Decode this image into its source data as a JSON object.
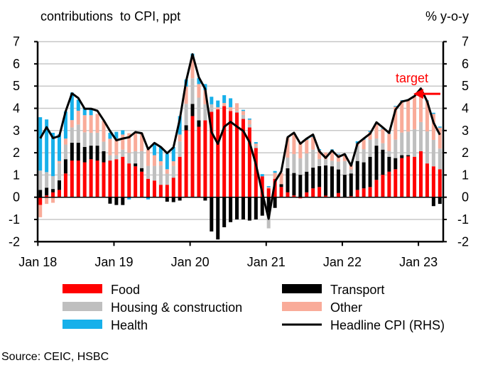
{
  "chart_data": {
    "type": "bar",
    "stacked": true,
    "left_title": "contributions  to CPI, ppt",
    "right_title": "% y-o-y",
    "source": "Source: CEIC, HSBC",
    "ylim": [
      -2,
      7
    ],
    "y2lim": [
      -2,
      7
    ],
    "grid": true,
    "legend_position": "bottom",
    "y_ticks": [
      "7",
      "6",
      "5",
      "4",
      "3",
      "2",
      "1",
      "0",
      "-1",
      "-2"
    ],
    "x_tick_labels": [
      "Jan 18",
      "Jan 19",
      "Jan 20",
      "Jan 21",
      "Jan 22",
      "Jan 23"
    ],
    "categories": [
      "Jan 18",
      "Feb 18",
      "Mar 18",
      "Apr 18",
      "May 18",
      "Jun 18",
      "Jul 18",
      "Aug 18",
      "Sep 18",
      "Oct 18",
      "Nov 18",
      "Dec 18",
      "Jan 19",
      "Feb 19",
      "Mar 19",
      "Apr 19",
      "May 19",
      "Jun 19",
      "Jul 19",
      "Aug 19",
      "Sep 19",
      "Oct 19",
      "Nov 19",
      "Dec 19",
      "Jan 20",
      "Feb 20",
      "Mar 20",
      "Apr 20",
      "May 20",
      "Jun 20",
      "Jul 20",
      "Aug 20",
      "Sep 20",
      "Oct 20",
      "Nov 20",
      "Dec 20",
      "Jan 21",
      "Feb 21",
      "Mar 21",
      "Apr 21",
      "May 21",
      "Jun 21",
      "Jul 21",
      "Aug 21",
      "Sep 21",
      "Oct 21",
      "Nov 21",
      "Dec 21",
      "Jan 22",
      "Feb 22",
      "Mar 22",
      "Apr 22",
      "May 22",
      "Jun 22",
      "Jul 22",
      "Aug 22",
      "Sep 22",
      "Oct 22",
      "Nov 22",
      "Dec 22",
      "Jan 23",
      "Feb 23",
      "Mar 23",
      "Apr 23"
    ],
    "series": [
      {
        "name": "Food",
        "color": "#ff0000",
        "values": [
          -0.35,
          0.08,
          0.22,
          0.33,
          1.07,
          1.65,
          1.65,
          1.57,
          1.71,
          1.65,
          1.57,
          1.65,
          1.71,
          1.82,
          1.52,
          1.39,
          1.15,
          0.83,
          0.75,
          0.56,
          0.56,
          0.88,
          1.82,
          3.01,
          3.65,
          3.17,
          3.46,
          3.84,
          3.95,
          4.1,
          3.88,
          3.81,
          3.52,
          3.14,
          2.21,
          0.94,
          0.4,
          0.83,
          0.46,
          0.22,
          0.08,
          -0.05,
          0.22,
          0.4,
          0.46,
          0.07,
          0.0,
          0.19,
          0.0,
          0.05,
          0.33,
          0.4,
          0.46,
          0.78,
          1.01,
          1.15,
          1.26,
          1.76,
          1.84,
          1.82,
          2.07,
          1.52,
          1.39,
          1.26
        ]
      },
      {
        "name": "Transport",
        "color": "#000000",
        "values": [
          0.33,
          0.35,
          0.15,
          0.43,
          0.64,
          0.8,
          0.8,
          0.69,
          0.61,
          0.67,
          0.5,
          -0.29,
          -0.35,
          -0.35,
          0,
          0.13,
          0.16,
          0,
          0,
          0,
          -0.2,
          -0.22,
          -0.15,
          0.23,
          0.55,
          0.29,
          -0.15,
          -1.54,
          -1.9,
          -1.35,
          -1.12,
          -1.0,
          -1.0,
          -1.05,
          -1.0,
          -0.83,
          -0.7,
          -0.48,
          0.13,
          1.08,
          1.01,
          1.01,
          0.93,
          0.93,
          0.94,
          1.36,
          1.39,
          1.06,
          1.01,
          1.02,
          1.3,
          1.17,
          1.36,
          1.54,
          1.13,
          0.67,
          0.5,
          0.13,
          0.05,
          0,
          0,
          0,
          -0.4,
          -0.3
        ]
      },
      {
        "name": "Housing & construction",
        "color": "#bfbfbf",
        "values": [
          0.87,
          0.7,
          0.58,
          0.77,
          0.66,
          0.69,
          0.82,
          0.66,
          0.58,
          0.58,
          0.43,
          0.24,
          0.18,
          0.32,
          0.48,
          0.55,
          0.77,
          0.58,
          0.66,
          0.87,
          0.5,
          0.53,
          0.69,
          0.96,
          1.15,
          1.02,
          0.72,
          0.34,
          0,
          0,
          0,
          0.07,
          0.18,
          0.14,
          0.1,
          0,
          -0.7,
          0,
          0,
          0.48,
          0.85,
          0.74,
          0.82,
          0.81,
          0.32,
          0.28,
          0.25,
          0.35,
          0.62,
          0.18,
          0.69,
          0.59,
          0.77,
          0.32,
          0.29,
          0.26,
          0.83,
          1.02,
          1.06,
          1.24,
          1.31,
          1.44,
          1.19,
          0.93
        ]
      },
      {
        "name": "Other",
        "color": "#f9ab99",
        "values": [
          -0.55,
          -0.3,
          -0.25,
          0.1,
          0.27,
          0.33,
          0.62,
          0.77,
          0.79,
          0.85,
          0.94,
          0.74,
          0.75,
          0.68,
          0.88,
          0.83,
          0.8,
          0.74,
          0.48,
          0.19,
          0.2,
          0.21,
          0.31,
          0.78,
          0.9,
          0.61,
          0.64,
          0,
          0.1,
          0.14,
          0.17,
          0.35,
          0.18,
          0.21,
          0.1,
          0,
          0.05,
          0.27,
          0.5,
          0.9,
          0.94,
          0.67,
          0.62,
          0.57,
          0.39,
          0.3,
          0.46,
          0.32,
          0.27,
          0.21,
          0.1,
          0.43,
          0.34,
          0.64,
          0.64,
          0.78,
          1.49,
          1.44,
          1.44,
          1.49,
          1.44,
          1.38,
          1.17,
          0.94
        ]
      },
      {
        "name": "Health",
        "color": "#17b0ea",
        "values": [
          2.4,
          2.37,
          1.95,
          1.2,
          1.22,
          1.24,
          0.5,
          0.33,
          0.28,
          0,
          0,
          0.27,
          0.3,
          0.19,
          -0.1,
          0,
          0,
          -0.1,
          0.48,
          0.64,
          0.7,
          0.64,
          0.83,
          0.32,
          0.21,
          0.27,
          0.27,
          0.34,
          0.3,
          0.35,
          0.4,
          0,
          0.05,
          0.05,
          0.07,
          0.1,
          0.05,
          0.08,
          0,
          0,
          0,
          0,
          0.03,
          0.03,
          0.05,
          0,
          0.05,
          0.03,
          0.03,
          0.03,
          0.1,
          0.04,
          0.05,
          0.05,
          0.03,
          0.03,
          0.03,
          0.02,
          0.02,
          0.02,
          0.02,
          0.02,
          0.05,
          0.05
        ]
      }
    ],
    "line": {
      "name": "Headline CPI (RHS)",
      "color": "#000000",
      "axis": "right",
      "values": [
        2.65,
        3.15,
        2.66,
        2.75,
        3.86,
        4.67,
        4.46,
        3.98,
        3.98,
        3.89,
        3.46,
        2.98,
        2.56,
        2.64,
        2.7,
        2.93,
        2.88,
        2.16,
        2.44,
        2.26,
        1.98,
        2.24,
        3.52,
        5.23,
        6.43,
        5.4,
        4.87,
        2.93,
        2.4,
        3.17,
        3.39,
        3.18,
        2.98,
        2.47,
        1.48,
        0.19,
        -0.97,
        0.7,
        1.16,
        2.7,
        2.9,
        2.41,
        2.64,
        2.82,
        2.06,
        1.77,
        2.1,
        1.81,
        1.94,
        1.42,
        2.41,
        2.64,
        2.86,
        3.37,
        3.14,
        2.89,
        3.94,
        4.3,
        4.37,
        4.55,
        4.89,
        4.31,
        3.35,
        2.81
      ]
    },
    "annotation": {
      "text": "target",
      "value": 4.65,
      "color": "#ff0000"
    }
  }
}
